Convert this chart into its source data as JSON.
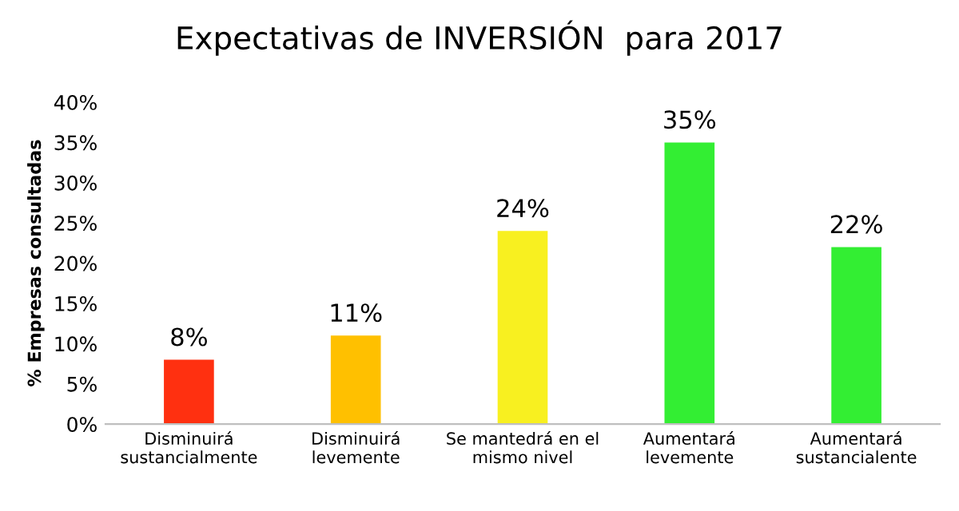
{
  "chart_data": {
    "type": "bar",
    "title": "Expectativas de INVERSIÓN  para 2017",
    "ylabel": "% Empresas consultadas",
    "categories": [
      "Disminuirá\nsustancialmente",
      "Disminuirá\nlevemente",
      "Se mantedrá en el\nmismo nivel",
      "Aumentará\nlevemente",
      "Aumentará\nsustancialente"
    ],
    "values": [
      8,
      11,
      24,
      35,
      22
    ],
    "colors": [
      "#ff3010",
      "#ffc000",
      "#f8f020",
      "#33ee33",
      "#33ee33"
    ],
    "ylim": [
      0,
      40
    ],
    "yticks": [
      {
        "value": 0,
        "label": "0%"
      },
      {
        "value": 5,
        "label": "5%"
      },
      {
        "value": 10,
        "label": "10%"
      },
      {
        "value": 15,
        "label": "15%"
      },
      {
        "value": 20,
        "label": "20%"
      },
      {
        "value": 25,
        "label": "25%"
      },
      {
        "value": 30,
        "label": "30%"
      },
      {
        "value": 35,
        "label": "35%"
      },
      {
        "value": 40,
        "label": "40%"
      }
    ],
    "value_labels": [
      "8%",
      "11%",
      "24%",
      "35%",
      "22%"
    ],
    "grid": false,
    "legend": false
  }
}
